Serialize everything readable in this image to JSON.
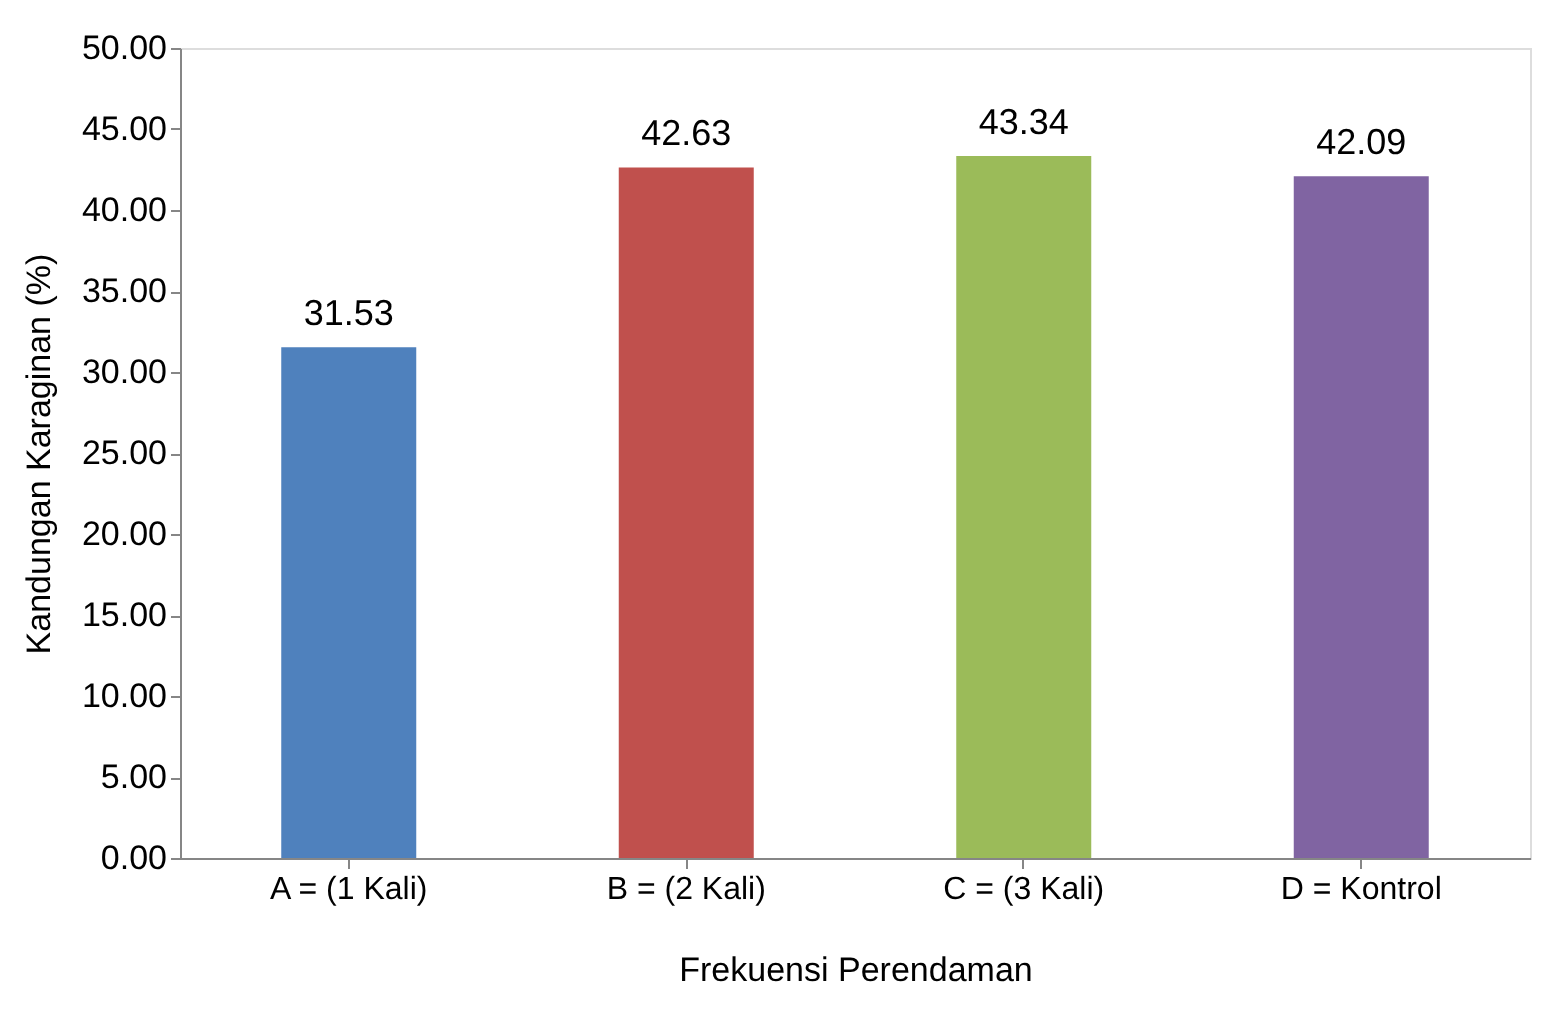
{
  "chart_data": {
    "type": "bar",
    "xlabel": "Frekuensi Perendaman",
    "ylabel": "Kandungan Karaginan (%)",
    "categories": [
      "A = (1 Kali)",
      "B = (2 Kali)",
      "C = (3 Kali)",
      "D = Kontrol"
    ],
    "values": [
      31.53,
      42.63,
      43.34,
      42.09
    ],
    "colors": [
      "#4f81bd",
      "#c0504d",
      "#9bbb59",
      "#8064a2"
    ],
    "ylim": [
      0,
      50
    ],
    "yticks": [
      {
        "value": 0,
        "label": "0.00"
      },
      {
        "value": 5,
        "label": "5.00"
      },
      {
        "value": 10,
        "label": "10.00"
      },
      {
        "value": 15,
        "label": "15.00"
      },
      {
        "value": 20,
        "label": "20.00"
      },
      {
        "value": 25,
        "label": "25.00"
      },
      {
        "value": 30,
        "label": "30.00"
      },
      {
        "value": 35,
        "label": "35.00"
      },
      {
        "value": 40,
        "label": "40.00"
      },
      {
        "value": 45,
        "label": "45.00"
      },
      {
        "value": 50,
        "label": "50.00"
      }
    ],
    "data_labels": true,
    "grid": false,
    "legend": false
  }
}
